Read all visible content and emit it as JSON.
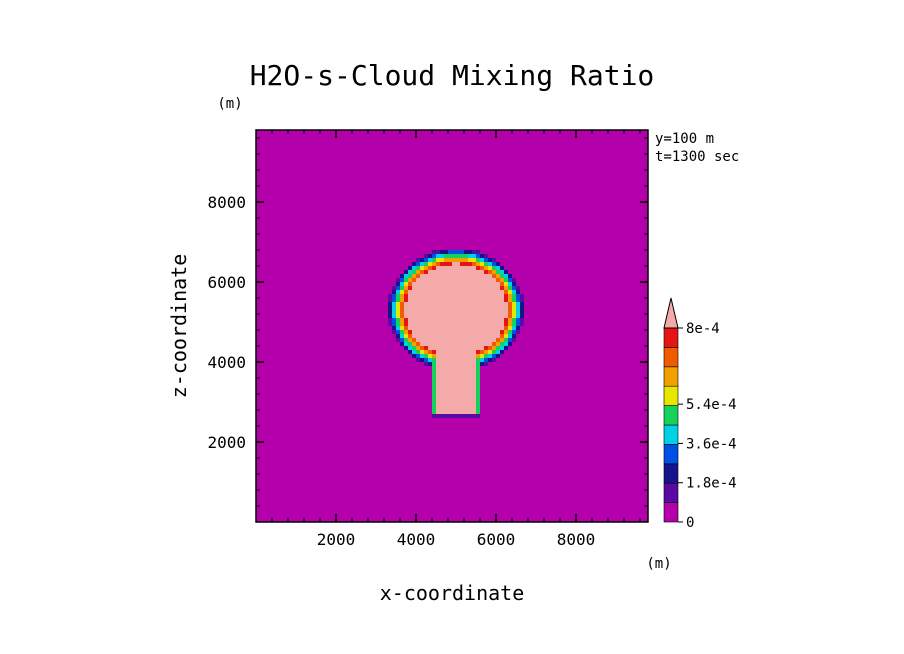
{
  "chart_data": {
    "type": "heatmap",
    "title": "H2O-s-Cloud Mixing Ratio",
    "xlabel": "x-coordinate",
    "ylabel": "z-coordinate",
    "x_unit": "(m)",
    "y_unit": "(m)",
    "xlim": [
      0,
      9800
    ],
    "ylim": [
      0,
      9800
    ],
    "x_ticks": [
      2000,
      4000,
      6000,
      8000
    ],
    "y_ticks": [
      2000,
      4000,
      6000,
      8000
    ],
    "annotations": [
      "y=100 m",
      "t=1300 sec"
    ],
    "colorbar": {
      "levels": [
        0,
        9e-05,
        0.00018,
        0.00027,
        0.00036,
        0.00045,
        0.00054,
        0.00063,
        0.00072,
        0.0008
      ],
      "tick_labels": [
        {
          "value": 0,
          "label": "0"
        },
        {
          "value": 0.00018,
          "label": "1.8e-4"
        },
        {
          "value": 0.00036,
          "label": "3.6e-4"
        },
        {
          "value": 0.00054,
          "label": "5.4e-4"
        },
        {
          "value": 0.0008,
          "label": "8e-4"
        }
      ],
      "colors": [
        "#b400aa",
        "#5a0aa0",
        "#14148c",
        "#0050e6",
        "#00d2e6",
        "#14d25a",
        "#e6e600",
        "#f0a000",
        "#f05a00",
        "#e61414",
        "#f5aaaa"
      ],
      "extend": "max"
    },
    "field": {
      "description": "cloud plume: head centered near x=5000 m, z=5300 m with stem down to z≈2700 m",
      "background_value": 0,
      "head": {
        "cx": 5000,
        "cz": 5300,
        "rx": 1550,
        "rz": 1400,
        "peak": 0.0009
      },
      "stem": {
        "x_center": 5000,
        "half_width": 550,
        "z_bottom": 2700,
        "z_top": 4300,
        "peak": 0.0009
      }
    }
  }
}
